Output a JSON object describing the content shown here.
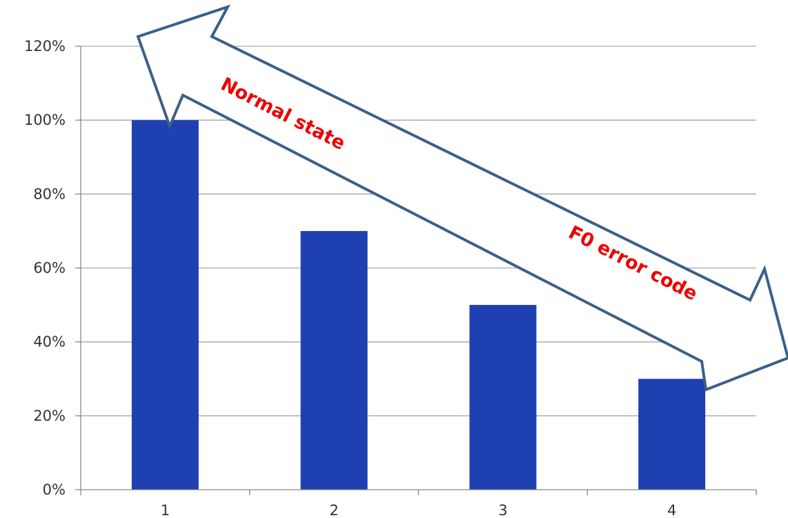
{
  "chart_data": {
    "type": "bar",
    "categories": [
      "1",
      "2",
      "3",
      "4"
    ],
    "values": [
      1.0,
      0.7,
      0.5,
      0.3
    ],
    "yticks": [
      "0%",
      "20%",
      "40%",
      "60%",
      "80%",
      "100%",
      "120%"
    ],
    "ylim": [
      0,
      1.2
    ],
    "grid": true,
    "legend": "none",
    "title": "",
    "xlabel": "",
    "ylabel": "",
    "bar_color": "#1f40b0",
    "annotations": [
      {
        "text": "Normal state",
        "color": "#ee0000"
      },
      {
        "text": "F0 error code",
        "color": "#ee0000"
      }
    ],
    "arrow": {
      "style": "double-headed",
      "outline_color": "#3b5f8a",
      "fill": "#ffffff"
    }
  }
}
